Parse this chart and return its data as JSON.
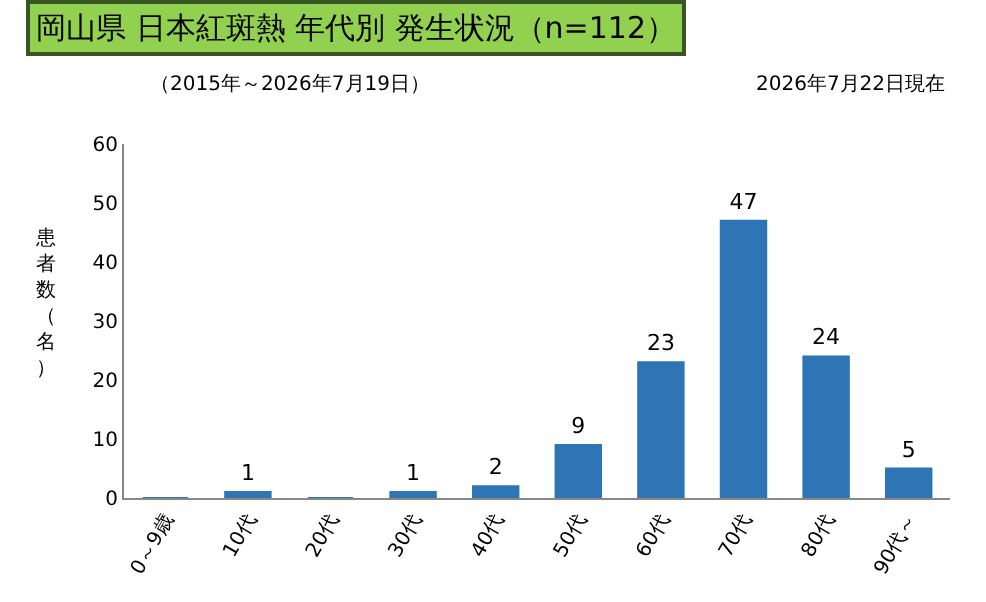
{
  "chart_data": {
    "type": "bar",
    "title": "岡山県 日本紅斑熱 年代別 発生状況（n=112）",
    "subtitle": "（2015年～2026年7月19日）",
    "annotations": [
      "2026年7月22日現在"
    ],
    "ylabel": "患者数（名）",
    "categories": [
      "0～9歳",
      "10代",
      "20代",
      "30代",
      "40代",
      "50代",
      "60代",
      "70代",
      "80代",
      "90代～"
    ],
    "values": [
      0,
      1,
      0,
      1,
      2,
      9,
      23,
      47,
      24,
      5
    ],
    "value_labels": [
      null,
      "1",
      null,
      "1",
      "2",
      "9",
      "23",
      "47",
      "24",
      "5"
    ],
    "color": "#2e75b6",
    "ylim": [
      0,
      60
    ],
    "yticks": [
      0,
      10,
      20,
      30,
      40,
      50,
      60
    ],
    "grid": false,
    "legend": false
  }
}
